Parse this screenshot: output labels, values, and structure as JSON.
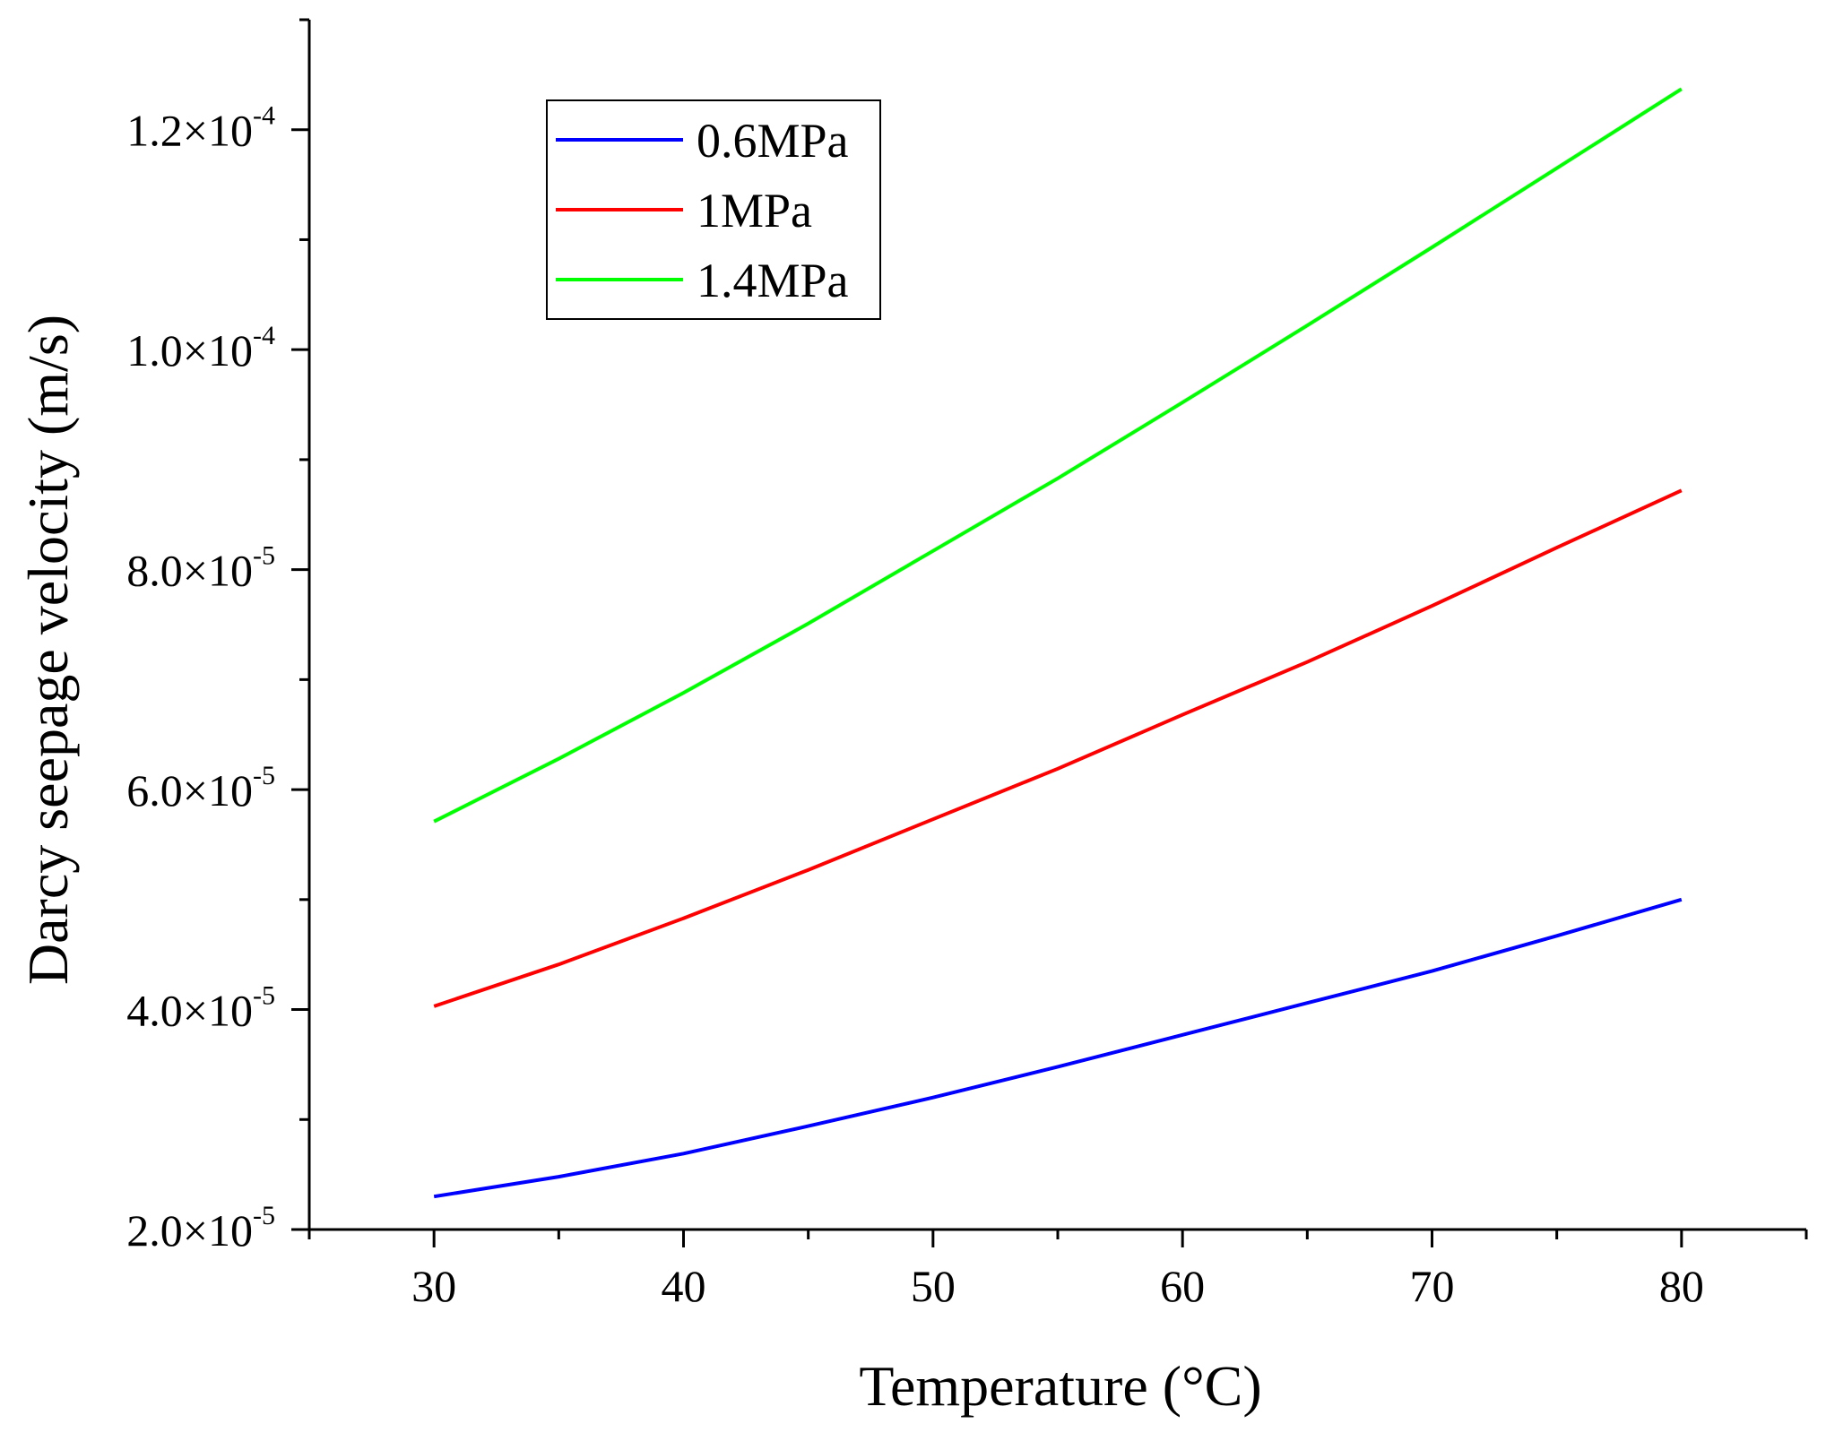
{
  "chart_data": {
    "type": "line",
    "title": "",
    "xlabel": "Temperature (°C)",
    "ylabel": "Darcy seepage velocity (m/s)",
    "xlim": [
      25,
      85
    ],
    "ylim": [
      2e-05,
      0.00013
    ],
    "x": [
      30,
      35,
      40,
      45,
      50,
      55,
      60,
      65,
      70,
      75,
      80
    ],
    "x_ticks": [
      {
        "value": 30,
        "label": "30"
      },
      {
        "value": 40,
        "label": "40"
      },
      {
        "value": 50,
        "label": "50"
      },
      {
        "value": 60,
        "label": "60"
      },
      {
        "value": 70,
        "label": "70"
      },
      {
        "value": 80,
        "label": "80"
      }
    ],
    "y_ticks": [
      {
        "value": 2e-05,
        "mantissa": "2.0×10",
        "exponent": "-5"
      },
      {
        "value": 4e-05,
        "mantissa": "4.0×10",
        "exponent": "-5"
      },
      {
        "value": 6e-05,
        "mantissa": "6.0×10",
        "exponent": "-5"
      },
      {
        "value": 8e-05,
        "mantissa": "8.0×10",
        "exponent": "-5"
      },
      {
        "value": 0.0001,
        "mantissa": "1.0×10",
        "exponent": "-4"
      },
      {
        "value": 0.00012,
        "mantissa": "1.2×10",
        "exponent": "-4"
      }
    ],
    "series": [
      {
        "name": "0.6MPa",
        "color": "#0000ff",
        "values": [
          2.3e-05,
          2.48e-05,
          2.69e-05,
          2.94e-05,
          3.2e-05,
          3.48e-05,
          3.77e-05,
          4.06e-05,
          4.35e-05,
          4.67e-05,
          5e-05
        ]
      },
      {
        "name": "1MPa",
        "color": "#ff0000",
        "values": [
          4.03e-05,
          4.41e-05,
          4.83e-05,
          5.27e-05,
          5.73e-05,
          6.19e-05,
          6.68e-05,
          7.16e-05,
          7.67e-05,
          8.2e-05,
          8.72e-05
        ]
      },
      {
        "name": "1.4MPa",
        "color": "#00ff00",
        "values": [
          5.71e-05,
          6.28e-05,
          6.88e-05,
          7.51e-05,
          8.17e-05,
          8.83e-05,
          9.52e-05,
          0.0001022,
          0.0001093,
          0.0001165,
          0.0001237
        ]
      }
    ],
    "legend_position": "top-left",
    "grid": false
  }
}
